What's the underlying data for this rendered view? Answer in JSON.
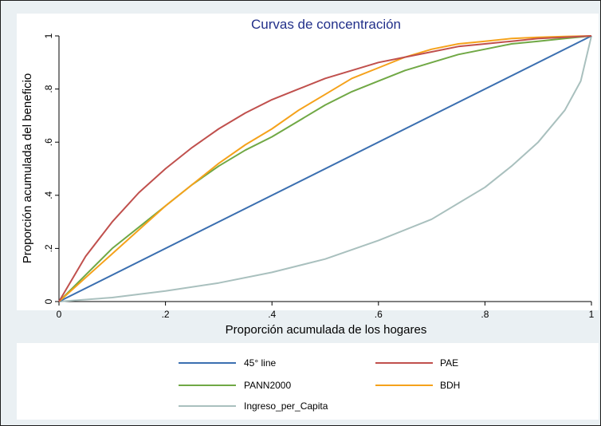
{
  "chart_data": {
    "type": "line",
    "title": "Curvas de concentración",
    "xlabel": "Proporción acumulada de los hogares",
    "ylabel": "Proporción acumulada del beneficio",
    "xlim": [
      0,
      1
    ],
    "ylim": [
      0,
      1
    ],
    "xticks": [
      0,
      0.2,
      0.4,
      0.6,
      0.8,
      1
    ],
    "xtick_labels": [
      "0",
      ".2",
      ".4",
      ".6",
      ".8",
      "1"
    ],
    "yticks": [
      0,
      0.2,
      0.4,
      0.6,
      0.8,
      1
    ],
    "ytick_labels": [
      "0",
      ".2",
      ".4",
      ".6",
      ".8",
      "1"
    ],
    "grid": false,
    "legend_position": "bottom",
    "series": [
      {
        "name": "45° line",
        "color": "#3b6fb0",
        "x": [
          0,
          1
        ],
        "y": [
          0,
          1
        ]
      },
      {
        "name": "PAE",
        "color": "#c0504d",
        "x": [
          0,
          0.05,
          0.1,
          0.15,
          0.2,
          0.25,
          0.3,
          0.35,
          0.4,
          0.45,
          0.5,
          0.55,
          0.6,
          0.65,
          0.7,
          0.75,
          0.8,
          0.85,
          0.9,
          0.95,
          1
        ],
        "y": [
          0,
          0.17,
          0.3,
          0.41,
          0.5,
          0.58,
          0.65,
          0.71,
          0.76,
          0.8,
          0.84,
          0.87,
          0.9,
          0.92,
          0.94,
          0.96,
          0.97,
          0.98,
          0.99,
          0.995,
          1
        ]
      },
      {
        "name": "PANN2000",
        "color": "#70a845",
        "x": [
          0,
          0.05,
          0.1,
          0.15,
          0.2,
          0.25,
          0.3,
          0.35,
          0.4,
          0.45,
          0.5,
          0.55,
          0.6,
          0.65,
          0.7,
          0.75,
          0.8,
          0.85,
          0.9,
          0.95,
          1
        ],
        "y": [
          0,
          0.1,
          0.2,
          0.28,
          0.36,
          0.44,
          0.51,
          0.57,
          0.62,
          0.68,
          0.74,
          0.79,
          0.83,
          0.87,
          0.9,
          0.93,
          0.95,
          0.97,
          0.98,
          0.99,
          1
        ]
      },
      {
        "name": "BDH",
        "color": "#f5a21b",
        "x": [
          0,
          0.05,
          0.1,
          0.15,
          0.2,
          0.25,
          0.3,
          0.35,
          0.4,
          0.45,
          0.5,
          0.55,
          0.6,
          0.65,
          0.7,
          0.75,
          0.8,
          0.85,
          0.9,
          0.95,
          1
        ],
        "y": [
          0,
          0.09,
          0.18,
          0.27,
          0.36,
          0.44,
          0.52,
          0.59,
          0.65,
          0.72,
          0.78,
          0.84,
          0.88,
          0.92,
          0.95,
          0.97,
          0.98,
          0.99,
          0.995,
          0.998,
          1
        ]
      },
      {
        "name": "Ingreso_per_Capita",
        "color": "#a9c0be",
        "x": [
          0,
          0.1,
          0.2,
          0.3,
          0.4,
          0.5,
          0.6,
          0.7,
          0.8,
          0.85,
          0.9,
          0.95,
          0.98,
          1
        ],
        "y": [
          0,
          0.015,
          0.04,
          0.07,
          0.11,
          0.16,
          0.23,
          0.31,
          0.43,
          0.51,
          0.6,
          0.72,
          0.83,
          1
        ]
      }
    ]
  }
}
